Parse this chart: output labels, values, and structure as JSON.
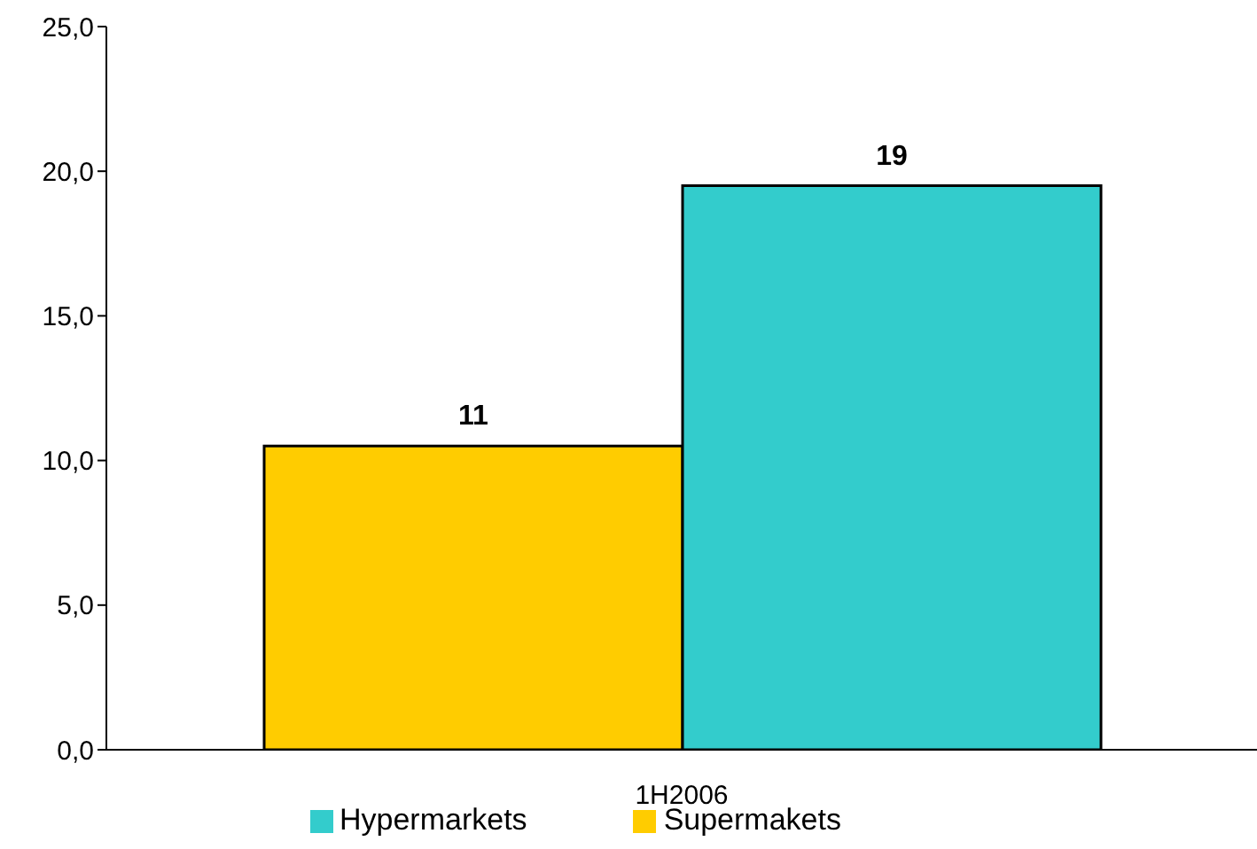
{
  "chart_data": {
    "type": "bar",
    "categories": [
      "1H2006"
    ],
    "series": [
      {
        "name": "Supermakets",
        "color": "#ffcc00",
        "values": [
          10.5
        ],
        "value_labels": [
          "11"
        ]
      },
      {
        "name": "Hypermarkets",
        "color": "#33cccc",
        "values": [
          19.5
        ],
        "value_labels": [
          "19"
        ]
      }
    ],
    "ylim": [
      0,
      25
    ],
    "yticks": [
      {
        "value": 0,
        "label": "0,0"
      },
      {
        "value": 5,
        "label": "5,0"
      },
      {
        "value": 10,
        "label": "10,0"
      },
      {
        "value": 15,
        "label": "15,0"
      },
      {
        "value": 20,
        "label": "20,0"
      },
      {
        "value": 25,
        "label": "25,0"
      }
    ],
    "legend": "bottom"
  }
}
